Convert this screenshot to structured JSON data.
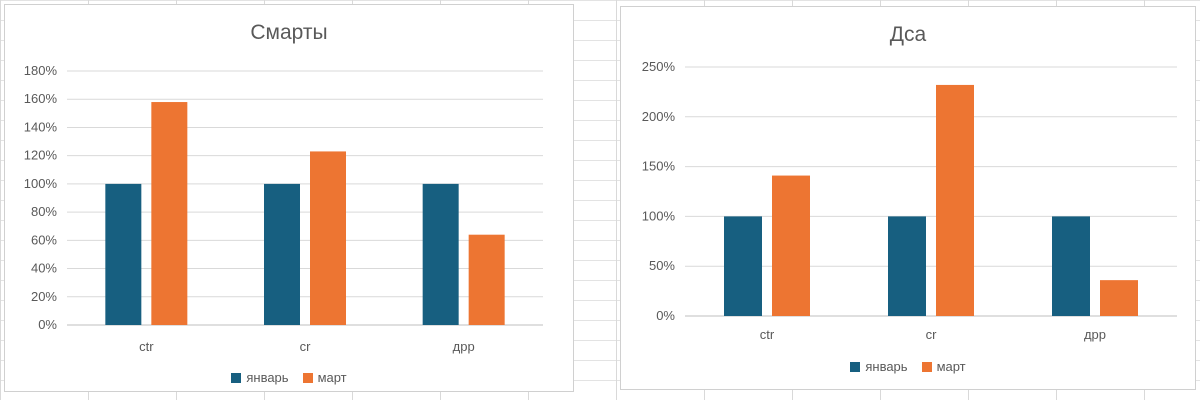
{
  "colors": {
    "january": "#175f80",
    "march": "#ed7532"
  },
  "chart_data": [
    {
      "type": "bar",
      "title": "Смарты",
      "categories": [
        "ctr",
        "cr",
        "дрр"
      ],
      "series": [
        {
          "name": "январь",
          "values": [
            1.0,
            1.0,
            1.0
          ]
        },
        {
          "name": "март",
          "values": [
            1.58,
            1.23,
            0.64
          ]
        }
      ],
      "ylim": [
        0,
        1.8
      ],
      "yticks": [
        "0%",
        "20%",
        "40%",
        "60%",
        "80%",
        "100%",
        "120%",
        "140%",
        "160%",
        "180%"
      ],
      "grid": true,
      "legend": "bottom"
    },
    {
      "type": "bar",
      "title": "Дса",
      "categories": [
        "ctr",
        "cr",
        "дрр"
      ],
      "series": [
        {
          "name": "январь",
          "values": [
            1.0,
            1.0,
            1.0
          ]
        },
        {
          "name": "март",
          "values": [
            1.41,
            2.32,
            0.36
          ]
        }
      ],
      "ylim": [
        0,
        2.5
      ],
      "yticks": [
        "0%",
        "50%",
        "100%",
        "150%",
        "200%",
        "250%"
      ],
      "grid": true,
      "legend": "bottom"
    }
  ]
}
